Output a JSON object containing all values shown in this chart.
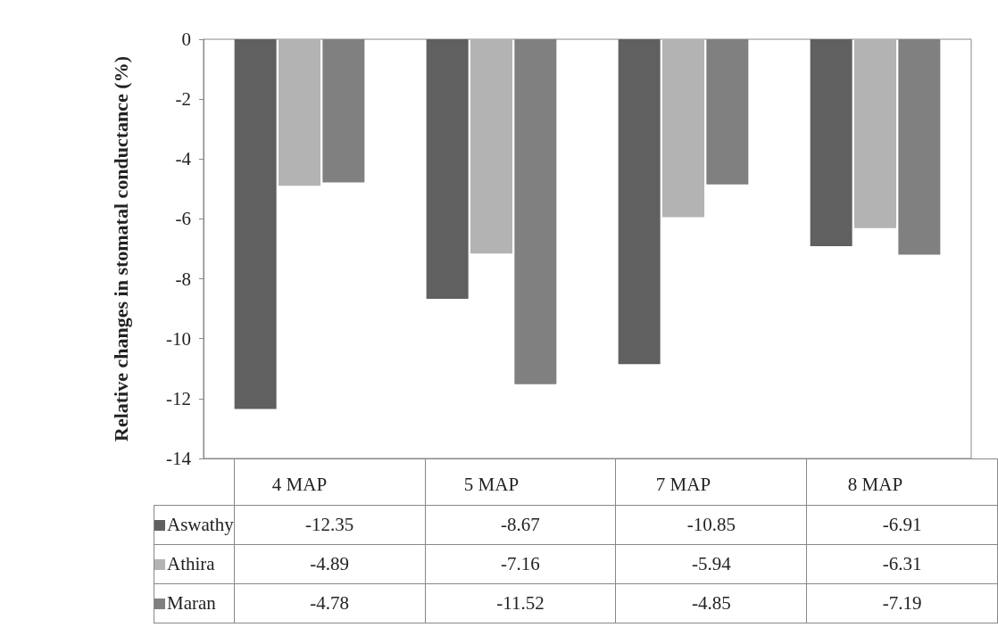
{
  "chart_data": {
    "type": "bar",
    "ylabel": "Relative changes in stomatal conductance (%)",
    "categories": [
      "4 MAP",
      "5 MAP",
      "7 MAP",
      "8 MAP"
    ],
    "series": [
      {
        "name": "Aswathy",
        "color": "#606060",
        "values": [
          -12.35,
          -8.67,
          -10.85,
          -6.91
        ]
      },
      {
        "name": "Athira",
        "color": "#b3b3b3",
        "values": [
          -4.89,
          -7.16,
          -5.94,
          -6.31
        ]
      },
      {
        "name": "Maran",
        "color": "#808080",
        "values": [
          -4.78,
          -11.52,
          -4.85,
          -7.19
        ]
      }
    ],
    "ylim": [
      -14,
      0
    ],
    "yticks": [
      0,
      -2,
      -4,
      -6,
      -8,
      -10,
      -12,
      -14
    ],
    "data_labels": true,
    "legend": "bottom",
    "grid": false
  }
}
